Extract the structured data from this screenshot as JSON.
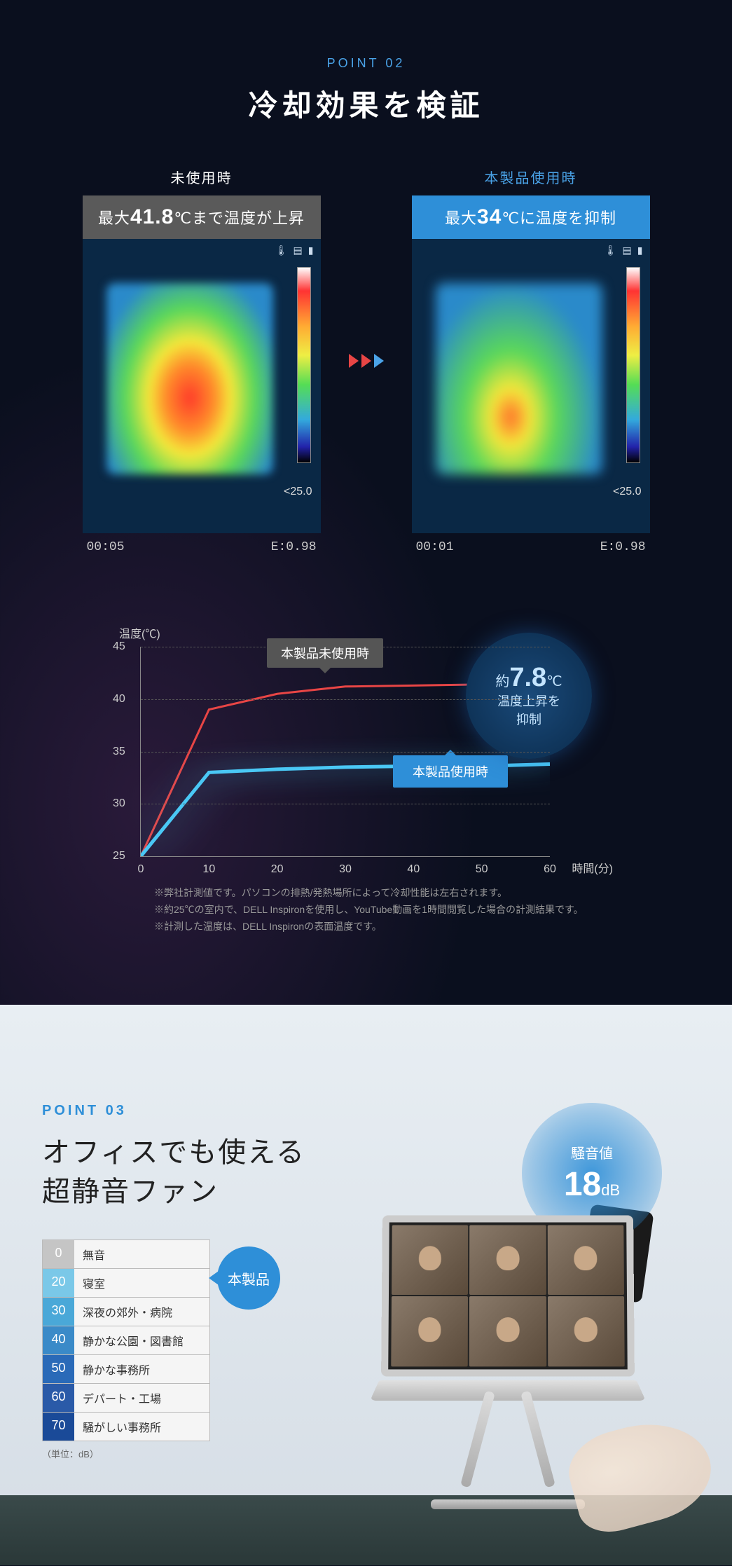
{
  "point02": {
    "label": "POINT 02",
    "title": "冷却効果を検証",
    "thermal_before": {
      "caption": "未使用時",
      "banner_pre": "最大",
      "banner_val": "41.8",
      "banner_unit": "℃",
      "banner_post": "まで温度が上昇",
      "banner_bg": "#5a5a5a",
      "time": "00:05",
      "emissivity": "E:0.98",
      "scale_min": "<25.0"
    },
    "thermal_after": {
      "caption": "本製品使用時",
      "banner_pre": "最大",
      "banner_val": "34",
      "banner_unit": "℃",
      "banner_post": "に温度を抑制",
      "banner_bg": "#2e8fd8",
      "time": "00:01",
      "emissivity": "E:0.98",
      "scale_min": "<25.0"
    },
    "arrow_colors": [
      "#e84545",
      "#e84545",
      "#4aa3e8"
    ]
  },
  "chart": {
    "ylabel": "温度(℃)",
    "xlabel": "時間(分)",
    "ylim": [
      25,
      45
    ],
    "ytick_step": 5,
    "yticks": [
      25,
      30,
      35,
      40,
      45
    ],
    "xlim": [
      0,
      60
    ],
    "xticks": [
      0,
      10,
      20,
      30,
      40,
      50,
      60
    ],
    "series_without": {
      "label": "本製品未使用時",
      "color": "#e84545",
      "x": [
        0,
        10,
        20,
        30,
        40,
        50,
        60
      ],
      "y": [
        25,
        39,
        40.5,
        41.2,
        41.3,
        41.4,
        41.5
      ]
    },
    "series_with": {
      "label": "本製品使用時",
      "color": "#4ac8f5",
      "x": [
        0,
        10,
        20,
        30,
        40,
        50,
        60
      ],
      "y": [
        25,
        33,
        33.3,
        33.5,
        33.6,
        33.6,
        33.8
      ]
    },
    "bubble": {
      "pre": "約",
      "val": "7.8",
      "unit": "℃",
      "sub1": "温度上昇を",
      "sub2": "抑制"
    },
    "notes": [
      "※弊社計測値です。パソコンの排熱/発熱場所によって冷却性能は左右されます。",
      "※約25℃の室内で、DELL Inspironを使用し、YouTube動画を1時間閲覧した場合の計測結果です。",
      "※計測した温度は、DELL Inspironの表面温度です。"
    ]
  },
  "point03": {
    "label": "POINT 03",
    "title_l1": "オフィスでも使える",
    "title_l2": "超静音ファン",
    "badge": "本製品",
    "noise_label": "騒音値",
    "noise_val": "18",
    "noise_unit": "dB",
    "db_unit": "（単位：dB）",
    "db_table": [
      {
        "val": "0",
        "label": "無音",
        "color": "#c5c5c5"
      },
      {
        "val": "20",
        "label": "寝室",
        "color": "#7ac8e8"
      },
      {
        "val": "30",
        "label": "深夜の郊外・病院",
        "color": "#4aa8d8"
      },
      {
        "val": "40",
        "label": "静かな公園・図書館",
        "color": "#3a8ac8"
      },
      {
        "val": "50",
        "label": "静かな事務所",
        "color": "#2a6ab8"
      },
      {
        "val": "60",
        "label": "デパート・工場",
        "color": "#2a5aa8"
      },
      {
        "val": "70",
        "label": "騒がしい事務所",
        "color": "#1a4a98"
      }
    ]
  }
}
